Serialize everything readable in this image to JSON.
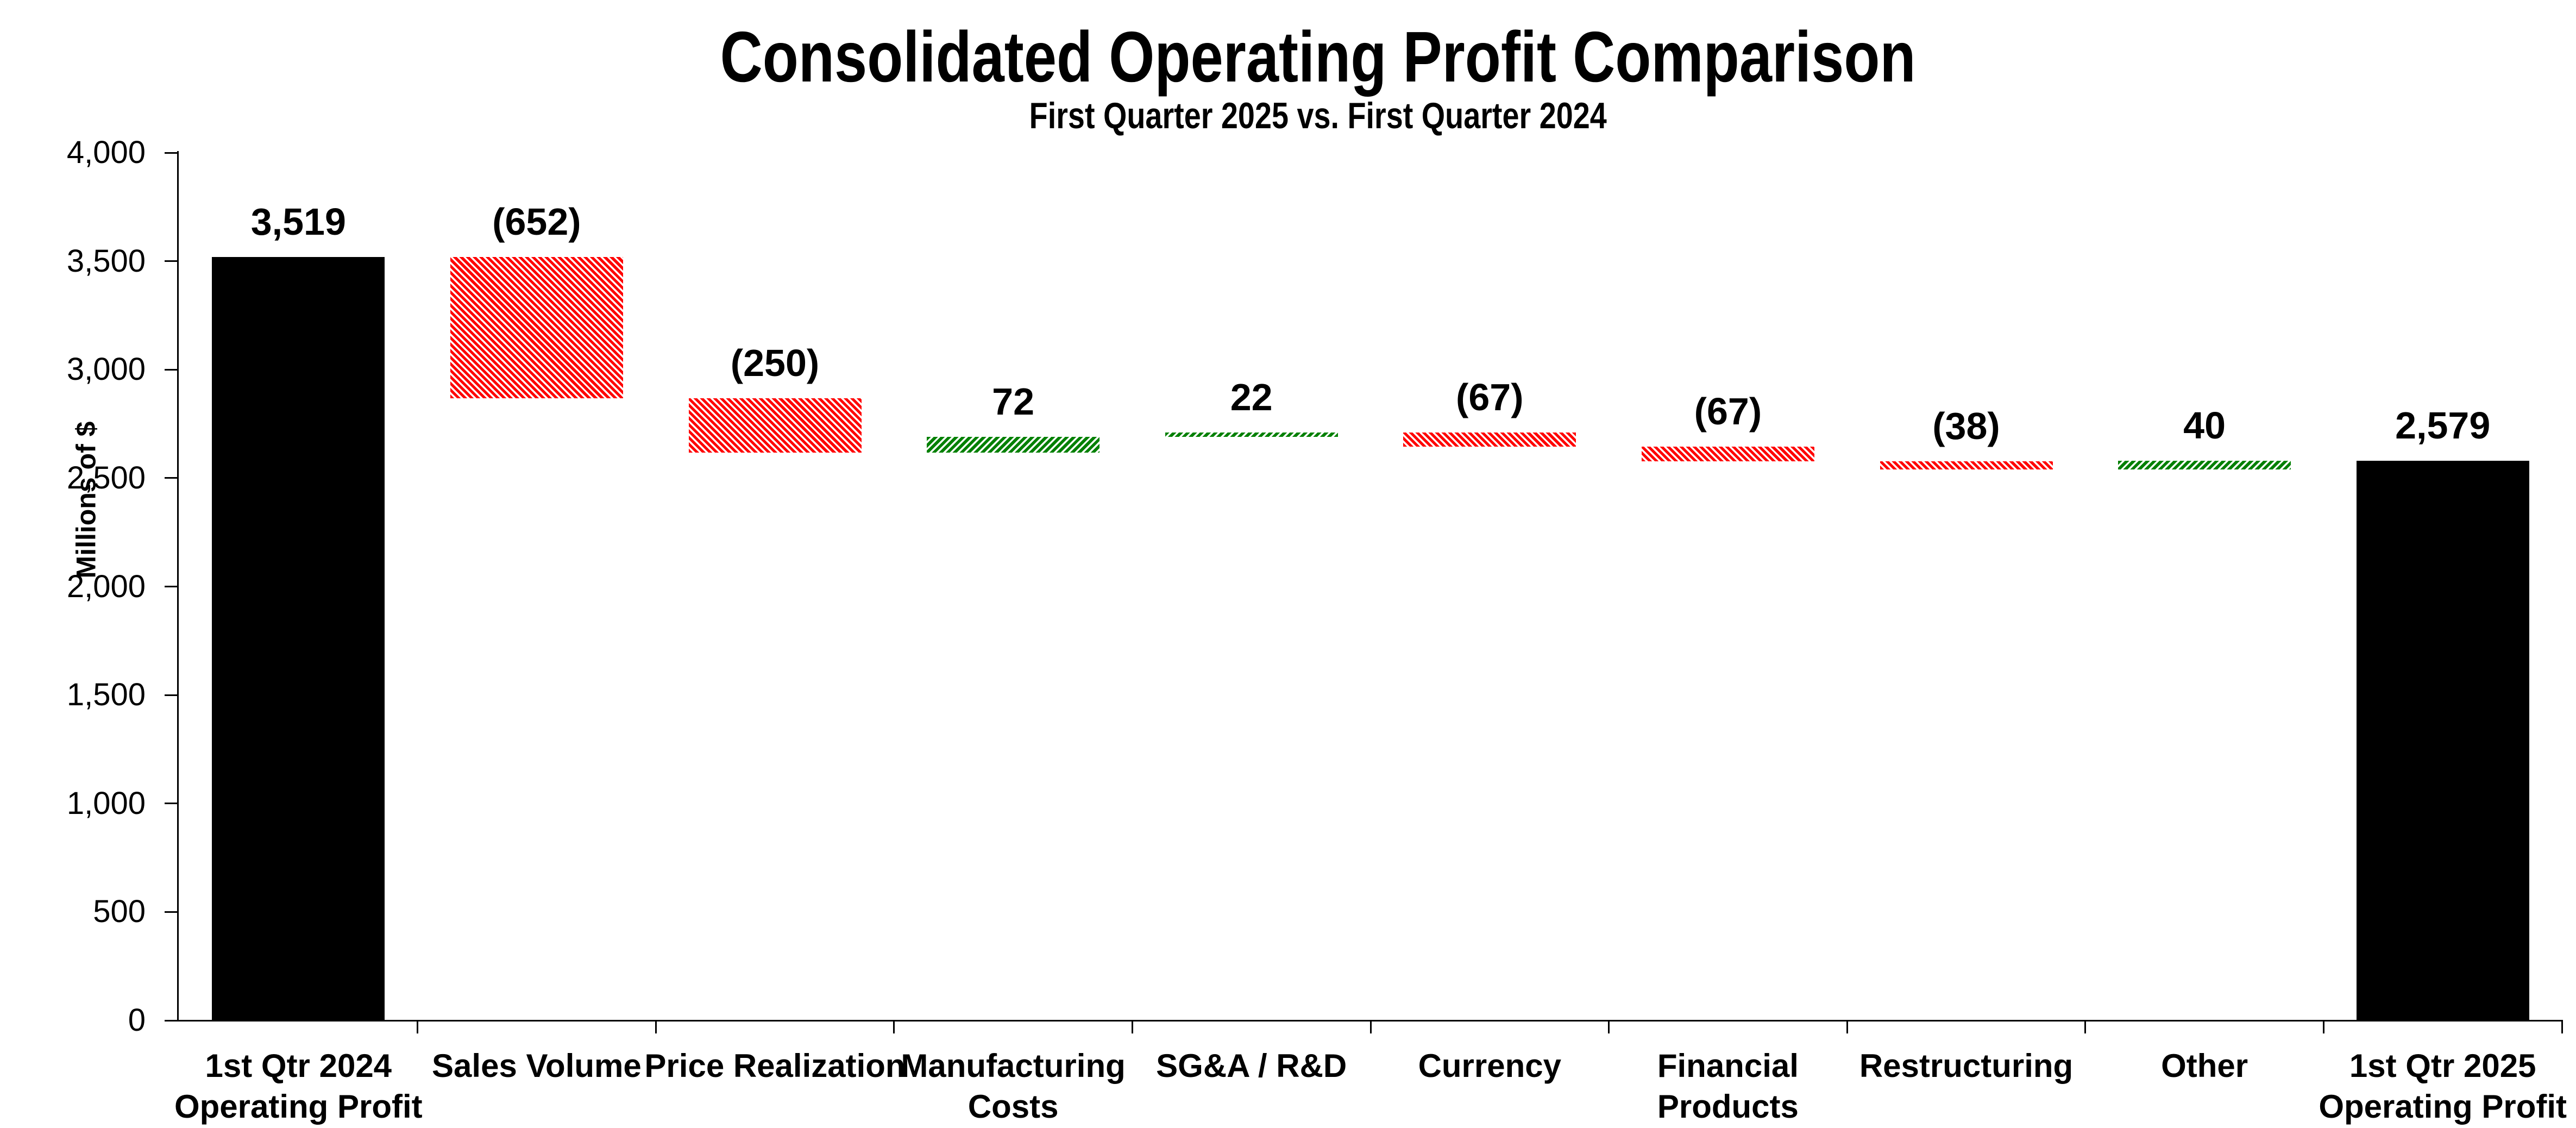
{
  "page": {
    "background": "#FFFFFF"
  },
  "chart_data": {
    "type": "bar",
    "subtype": "waterfall",
    "title": "Consolidated Operating Profit Comparison",
    "subtitle": "First Quarter 2025 vs. First Quarter 2024",
    "xlabel": "",
    "ylabel": "Millions of $",
    "ylim": [
      0,
      4000
    ],
    "ytick_step": 500,
    "ytick_labels": [
      "0",
      "500",
      "1,000",
      "1,500",
      "2,000",
      "2,500",
      "3,000",
      "3,500",
      "4,000"
    ],
    "grid": false,
    "legend": false,
    "categories": [
      [
        "1st Qtr 2024",
        "Operating Profit"
      ],
      [
        "Sales Volume"
      ],
      [
        "Price Realization"
      ],
      [
        "Manufacturing",
        "Costs"
      ],
      [
        "SG&A / R&D"
      ],
      [
        "Currency"
      ],
      [
        "Financial",
        "Products"
      ],
      [
        "Restructuring"
      ],
      [
        "Other"
      ],
      [
        "1st Qtr 2025",
        "Operating Profit"
      ]
    ],
    "bars": [
      {
        "name": "1st-qtr-2024-operating-profit",
        "label": "3,519",
        "value": 3519,
        "start": 0,
        "end": 3519,
        "kind": "total"
      },
      {
        "name": "sales-volume",
        "label": "(652)",
        "value": -652,
        "start": 3519,
        "end": 2867,
        "kind": "decrease"
      },
      {
        "name": "price-realization",
        "label": "(250)",
        "value": -250,
        "start": 2867,
        "end": 2617,
        "kind": "decrease"
      },
      {
        "name": "manufacturing-costs",
        "label": "72",
        "value": 72,
        "start": 2617,
        "end": 2689,
        "kind": "increase"
      },
      {
        "name": "sga-rd",
        "label": "22",
        "value": 22,
        "start": 2689,
        "end": 2711,
        "kind": "increase"
      },
      {
        "name": "currency",
        "label": "(67)",
        "value": -67,
        "start": 2711,
        "end": 2644,
        "kind": "decrease"
      },
      {
        "name": "financial-products",
        "label": "(67)",
        "value": -67,
        "start": 2644,
        "end": 2577,
        "kind": "decrease"
      },
      {
        "name": "restructuring",
        "label": "(38)",
        "value": -38,
        "start": 2577,
        "end": 2539,
        "kind": "decrease"
      },
      {
        "name": "other",
        "label": "40",
        "value": 40,
        "start": 2539,
        "end": 2579,
        "kind": "increase"
      },
      {
        "name": "1st-qtr-2025-operating-profit",
        "label": "2,579",
        "value": 2579,
        "start": 0,
        "end": 2579,
        "kind": "total"
      }
    ],
    "colors": {
      "total": "#000000",
      "decrease": "#FF0000",
      "increase": "#008000",
      "axis": "#000000",
      "text": "#000000",
      "background": "#FFFFFF"
    }
  }
}
